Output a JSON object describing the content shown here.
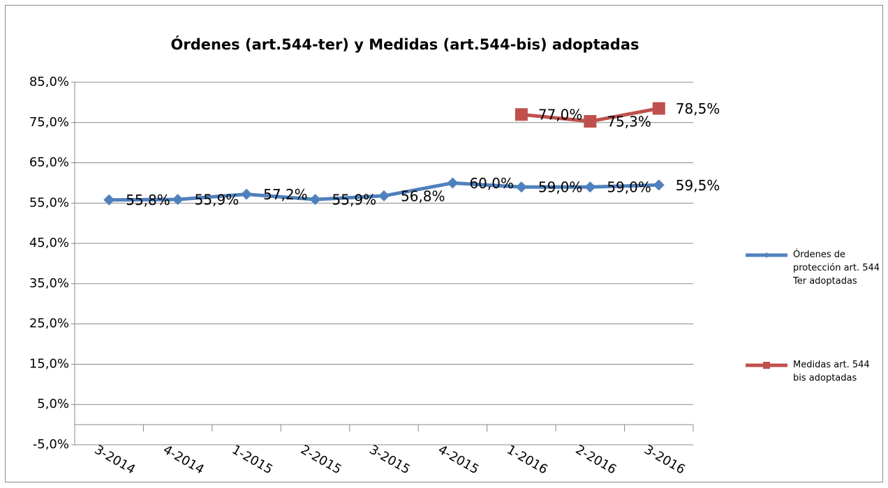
{
  "chart_data": {
    "type": "line",
    "title": "Órdenes  (art.544-ter) y Medidas (art.544-bis) adoptadas",
    "categories": [
      "3-2014",
      "4-2014",
      "1-2015",
      "2-2015",
      "3-2015",
      "4-2015",
      "1-2016",
      "2-2016",
      "3-2016"
    ],
    "series": [
      {
        "name": "Órdenes de protección art. 544 Ter adoptadas",
        "color": "#4f81bd",
        "marker": "diamond",
        "values": [
          55.8,
          55.9,
          57.2,
          55.9,
          56.8,
          60.0,
          59.0,
          59.0,
          59.5
        ],
        "value_labels": [
          "55,8%",
          "55,9%",
          "57,2%",
          "55,9%",
          "56,8%",
          "60,0%",
          "59,0%",
          "59,0%",
          "59,5%"
        ]
      },
      {
        "name": "Medidas art. 544 bis adoptadas",
        "color": "#c0504d",
        "marker": "square",
        "values": [
          null,
          null,
          null,
          null,
          null,
          null,
          77.0,
          75.3,
          78.5
        ],
        "value_labels": [
          null,
          null,
          null,
          null,
          null,
          null,
          "77,0%",
          "75,3%",
          "78,5%"
        ]
      }
    ],
    "ylim": [
      -5,
      85
    ],
    "yticks": [
      {
        "value": -5,
        "label": "-5,0%"
      },
      {
        "value": 5,
        "label": "5,0%"
      },
      {
        "value": 15,
        "label": "15,0%"
      },
      {
        "value": 25,
        "label": "25,0%"
      },
      {
        "value": 35,
        "label": "35,0%"
      },
      {
        "value": 45,
        "label": "45,0%"
      },
      {
        "value": 55,
        "label": "55,0%"
      },
      {
        "value": 65,
        "label": "65,0%"
      },
      {
        "value": 75,
        "label": "75,0%"
      },
      {
        "value": 85,
        "label": "85,0%"
      }
    ],
    "grid": true,
    "legend": "right"
  }
}
